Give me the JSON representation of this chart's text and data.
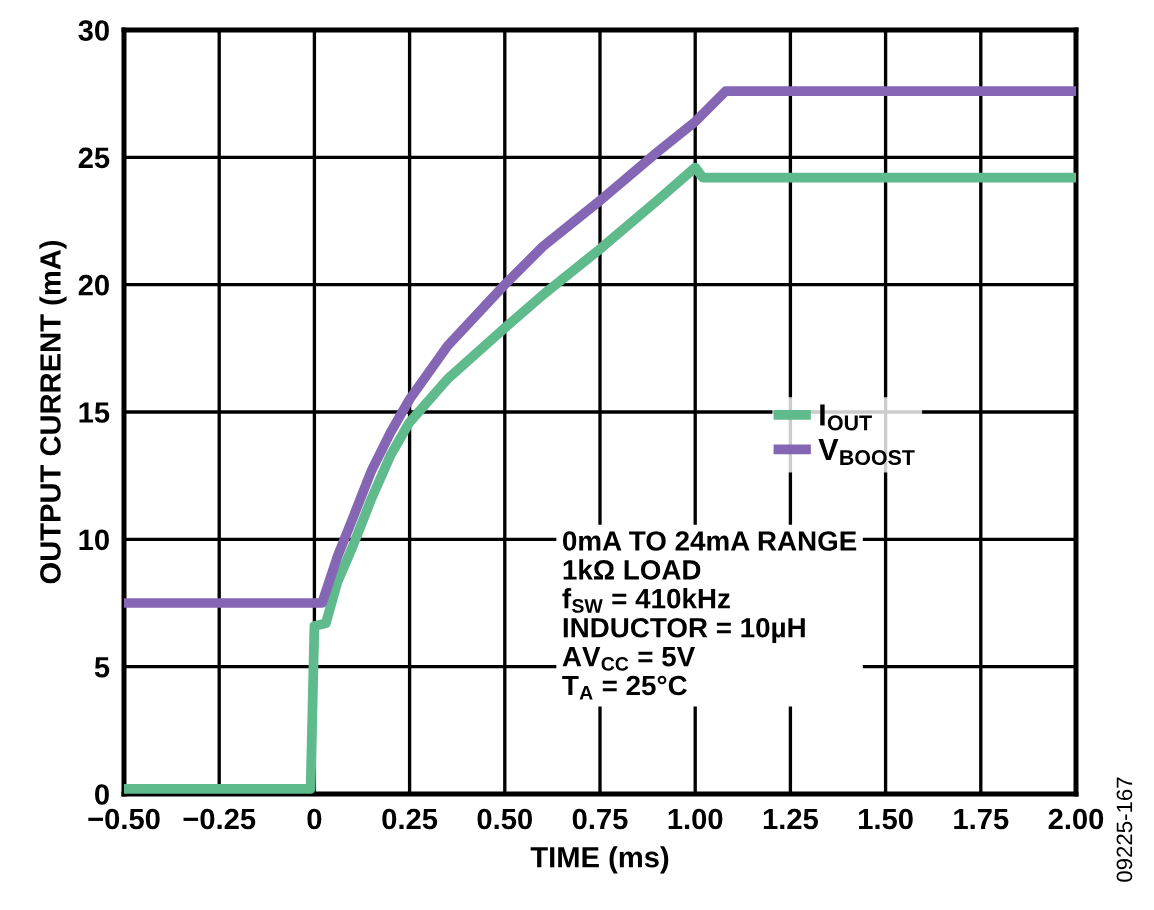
{
  "chart_data": {
    "type": "line",
    "xlabel": "TIME (ms)",
    "ylabel": "OUTPUT CURRENT (mA)",
    "xlim": [
      -0.5,
      2.0
    ],
    "xticks": [
      {
        "value": -0.5,
        "label": "−0.50"
      },
      {
        "value": -0.25,
        "label": "−0.25"
      },
      0,
      {
        "value": 0.25,
        "label": "0.25"
      },
      {
        "value": 0.5,
        "label": "0.50"
      },
      {
        "value": 0.75,
        "label": "0.75"
      },
      {
        "value": 1.0,
        "label": "1.00"
      },
      {
        "value": 1.25,
        "label": "1.25"
      },
      {
        "value": 1.5,
        "label": "1.50"
      },
      {
        "value": 1.75,
        "label": "1.75"
      },
      {
        "value": 2.0,
        "label": "2.00"
      }
    ],
    "ylim": [
      0,
      30
    ],
    "yticks": [
      0,
      5,
      10,
      15,
      20,
      25,
      30
    ],
    "grid": true,
    "legend": "right",
    "line_style": "solid",
    "marker": "none",
    "series": [
      {
        "name": "I$_{OUT}$",
        "color": "#5fba8c",
        "x": [
          -0.5,
          -0.01,
          0.0,
          0.03,
          0.06,
          0.1,
          0.15,
          0.2,
          0.25,
          0.35,
          0.5,
          0.6,
          0.75,
          0.9,
          1.0,
          1.02,
          2.0
        ],
        "values": [
          0.2,
          0.2,
          6.6,
          6.7,
          8.3,
          9.7,
          11.6,
          13.3,
          14.6,
          16.3,
          18.3,
          19.6,
          21.4,
          23.3,
          24.6,
          24.2,
          24.2
        ]
      },
      {
        "name": "V$_{BOOST}$",
        "color": "#8466b4",
        "x": [
          -0.5,
          0.02,
          0.06,
          0.1,
          0.15,
          0.2,
          0.25,
          0.35,
          0.5,
          0.6,
          0.75,
          0.9,
          1.0,
          1.08,
          2.0
        ],
        "values": [
          7.5,
          7.5,
          9.3,
          10.8,
          12.7,
          14.2,
          15.5,
          17.6,
          20.0,
          21.5,
          23.3,
          25.2,
          26.4,
          27.6,
          27.6
        ]
      }
    ],
    "annotations": [
      "0mA TO 24mA RANGE\n1kΩ LOAD\nf$_{SW}$ = 410kHz\nINDUCTOR = 10µH\nAV$_{CC}$ = 5V\nT$_{A}$ = 25°C",
      "09225-167"
    ]
  }
}
